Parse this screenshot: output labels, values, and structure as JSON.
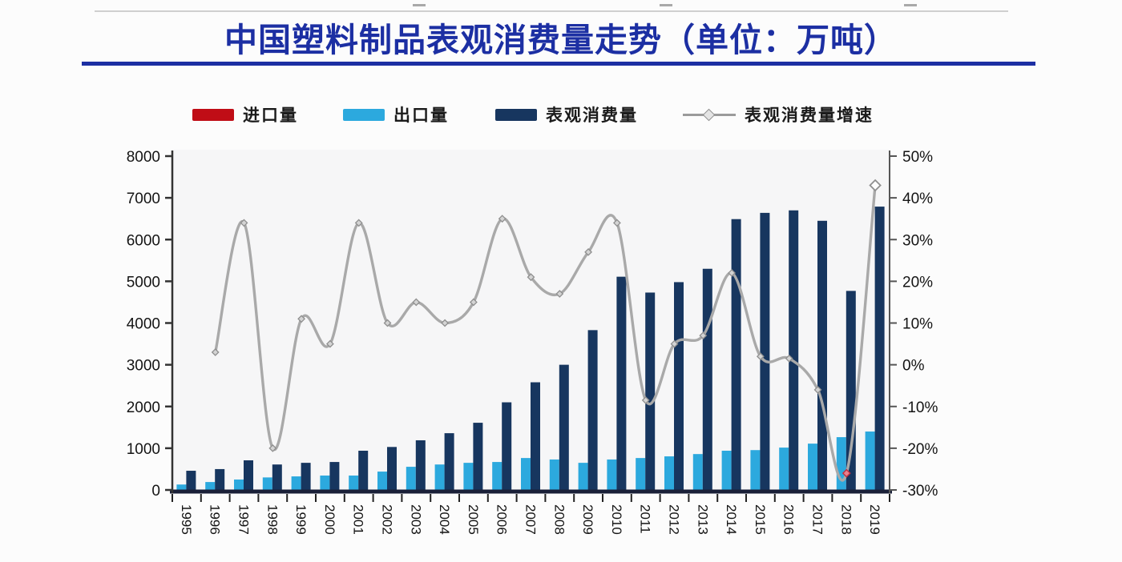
{
  "page": {
    "title": "中国塑料制品表观消费量走势（单位：万吨）"
  },
  "legend": {
    "items": [
      {
        "label": "进口量",
        "type": "bar",
        "color": "#c00d16"
      },
      {
        "label": "出口量",
        "type": "bar",
        "color": "#2ca9de"
      },
      {
        "label": "表观消费量",
        "type": "bar",
        "color": "#17365f"
      },
      {
        "label": "表观消费量增速",
        "type": "line",
        "color": "#9b9b9b"
      }
    ]
  },
  "chart_data": {
    "type": "bar",
    "subtype": "bar-line-combo",
    "title": "中国塑料制品表观消费量走势（单位：万吨）",
    "unit_left": "万吨",
    "unit_right": "%",
    "categories": [
      1995,
      1996,
      1997,
      1998,
      1999,
      2000,
      2001,
      2002,
      2003,
      2004,
      2005,
      2006,
      2007,
      2008,
      2009,
      2010,
      2011,
      2012,
      2013,
      2014,
      2015,
      2016,
      2017,
      2018,
      2019
    ],
    "series": [
      {
        "name": "进口量",
        "type": "bar",
        "axis": "left",
        "color": "#c00d16",
        "values": null,
        "note": "series present in legend; bars too small to be visible in the image"
      },
      {
        "name": "出口量",
        "type": "bar",
        "axis": "left",
        "color": "#2ca9de",
        "values": [
          130,
          190,
          250,
          300,
          325,
          345,
          345,
          440,
          555,
          610,
          650,
          670,
          765,
          730,
          650,
          730,
          765,
          805,
          860,
          940,
          955,
          1015,
          1110,
          1265,
          1400
        ]
      },
      {
        "name": "表观消费量",
        "type": "bar",
        "axis": "left",
        "color": "#17365f",
        "values": [
          460,
          500,
          710,
          610,
          650,
          670,
          940,
          1030,
          1190,
          1360,
          1610,
          2100,
          2580,
          3000,
          3830,
          5110,
          4730,
          4980,
          5300,
          6490,
          6640,
          6700,
          6450,
          4770,
          6790
        ]
      },
      {
        "name": "表观消费量增速",
        "type": "line",
        "axis": "right",
        "color": "#9b9b9b",
        "x_start": 1996,
        "values": [
          3,
          34,
          -20,
          11,
          5,
          34,
          10,
          15,
          10,
          15,
          35,
          21,
          17,
          27,
          34,
          -8.5,
          5,
          7,
          22,
          2,
          1.5,
          -6,
          -26,
          43
        ]
      }
    ],
    "left_axis": {
      "min": 0,
      "max": 8000,
      "step": 1000,
      "tick_labels": [
        "0",
        "1000",
        "2000",
        "3000",
        "4000",
        "5000",
        "6000",
        "7000",
        "8000"
      ]
    },
    "right_axis": {
      "min": -30,
      "max": 50,
      "step": 10,
      "format": "percent",
      "tick_labels": [
        "-30%",
        "-20%",
        "-10%",
        "0%",
        "10%",
        "20%",
        "30%",
        "40%",
        "50%"
      ]
    },
    "grid": false,
    "legend_position": "top",
    "annotations": [
      {
        "year": 2018,
        "marker": "red-diamond",
        "desc": "small red marker at growth-line trough (-26%)"
      },
      {
        "year": 2019,
        "marker": "open-diamond",
        "desc": "open diamond at end of growth line (43%)"
      }
    ]
  }
}
